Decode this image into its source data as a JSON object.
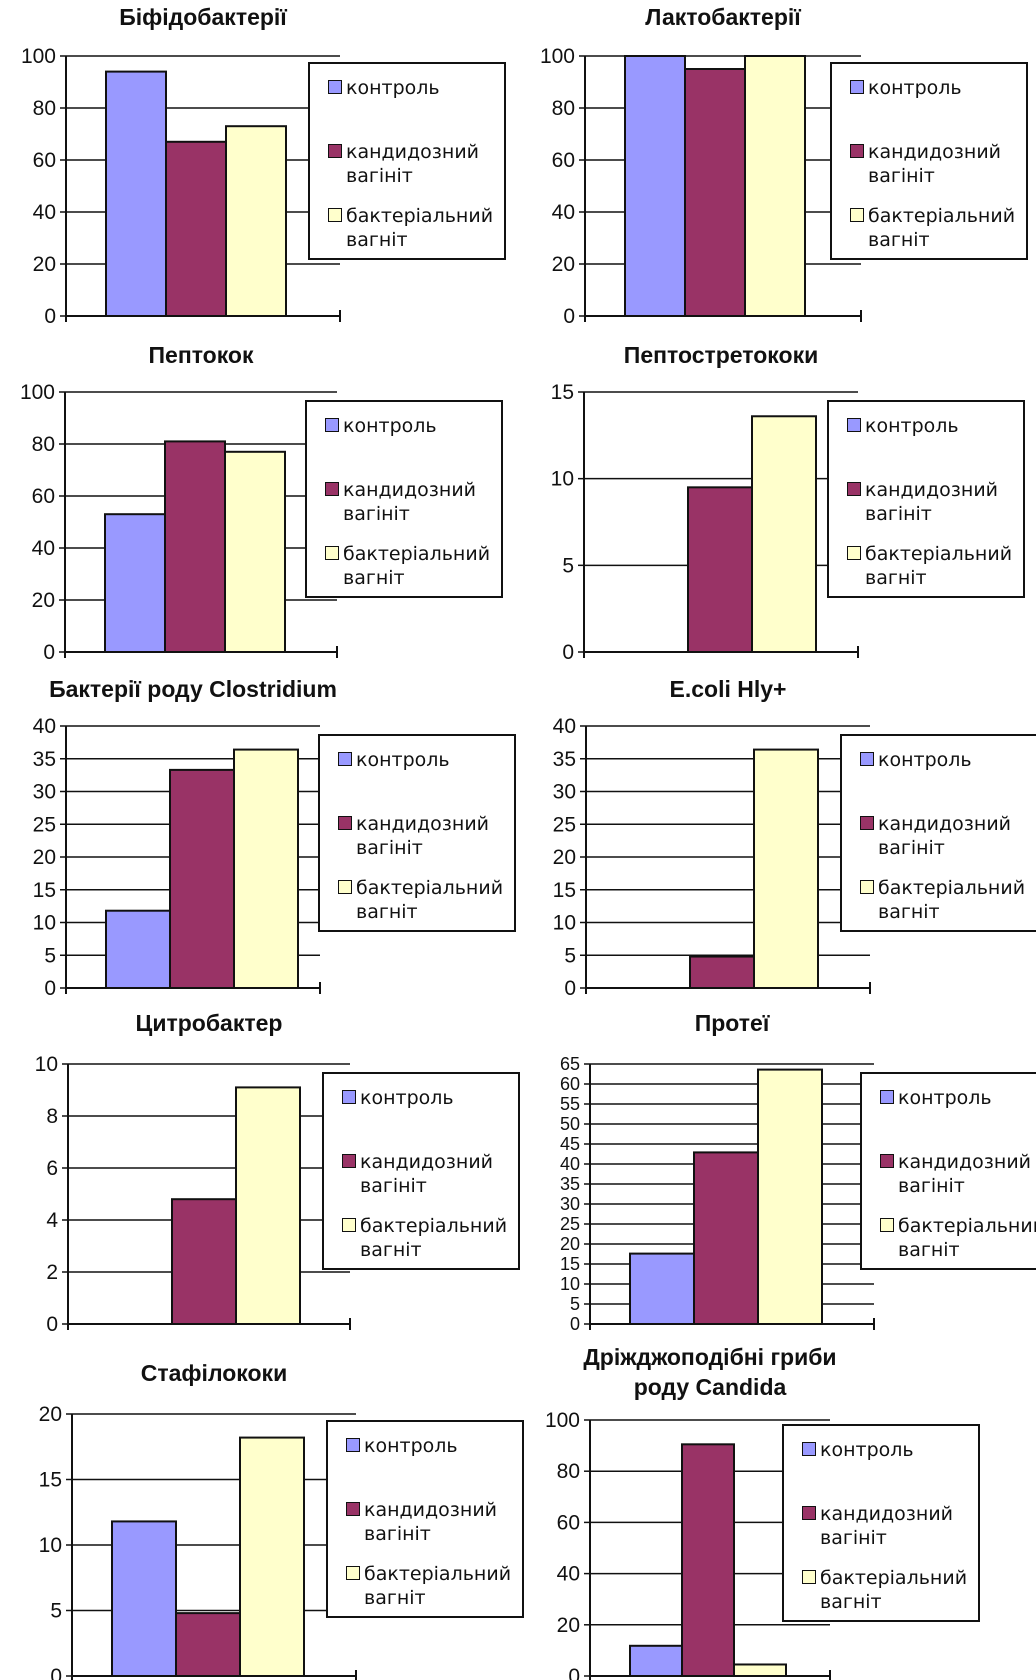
{
  "legend": [
    {
      "label": "контроль",
      "color": "#9999ff"
    },
    {
      "label": "кандидозний вагініт",
      "color": "#993366"
    },
    {
      "label": "бактеріальний вагніт",
      "color": "#ffffcc"
    }
  ],
  "chart_data": [
    {
      "type": "bar",
      "title": "Біфідобактерії",
      "categories": [
        "контроль",
        "кандидозний вагініт",
        "бактеріальний вагніт"
      ],
      "values": [
        94,
        67,
        73
      ],
      "ylim": [
        0,
        100
      ],
      "yticks": [
        0,
        20,
        40,
        60,
        80,
        100
      ],
      "grid": true,
      "legend_position": "right"
    },
    {
      "type": "bar",
      "title": "Лактобактерії",
      "categories": [
        "контроль",
        "кандидозний вагініт",
        "бактеріальний вагніт"
      ],
      "values": [
        100,
        95,
        100
      ],
      "ylim": [
        0,
        100
      ],
      "yticks": [
        0,
        20,
        40,
        60,
        80,
        100
      ],
      "grid": true,
      "legend_position": "right"
    },
    {
      "type": "bar",
      "title": "Пептокок",
      "categories": [
        "контроль",
        "кандидозний вагініт",
        "бактеріальний вагніт"
      ],
      "values": [
        53,
        81,
        77
      ],
      "ylim": [
        0,
        100
      ],
      "yticks": [
        0,
        20,
        40,
        60,
        80,
        100
      ],
      "grid": true,
      "legend_position": "right"
    },
    {
      "type": "bar",
      "title": "Пептостретококи",
      "categories": [
        "контроль",
        "кандидозний вагініт",
        "бактеріальний вагніт"
      ],
      "values": [
        0,
        9.5,
        13.6
      ],
      "ylim": [
        0,
        15
      ],
      "yticks": [
        0,
        5,
        10,
        15
      ],
      "grid": true,
      "legend_position": "right"
    },
    {
      "type": "bar",
      "title": "Бактерії роду Clostridium",
      "categories": [
        "контроль",
        "кандидозний вагініт",
        "бактеріальний вагніт"
      ],
      "values": [
        11.8,
        33.3,
        36.4
      ],
      "ylim": [
        0,
        40
      ],
      "yticks": [
        0,
        5,
        10,
        15,
        20,
        25,
        30,
        35,
        40
      ],
      "grid": true,
      "legend_position": "right"
    },
    {
      "type": "bar",
      "title": "E.coli Hly+",
      "categories": [
        "контроль",
        "кандидозний вагініт",
        "бактеріальний вагніт"
      ],
      "values": [
        0,
        4.8,
        36.4
      ],
      "ylim": [
        0,
        40
      ],
      "yticks": [
        0,
        5,
        10,
        15,
        20,
        25,
        30,
        35,
        40
      ],
      "grid": true,
      "legend_position": "right"
    },
    {
      "type": "bar",
      "title": "Цитробактер",
      "categories": [
        "контроль",
        "кандидозний вагініт",
        "бактеріальний вагніт"
      ],
      "values": [
        0,
        4.8,
        9.1
      ],
      "ylim": [
        0,
        10
      ],
      "yticks": [
        0,
        2,
        4,
        6,
        8,
        10
      ],
      "grid": true,
      "legend_position": "right"
    },
    {
      "type": "bar",
      "title": "Протеї",
      "categories": [
        "контроль",
        "кандидозний вагініт",
        "бактеріальний вагніт"
      ],
      "values": [
        17.6,
        42.9,
        63.6
      ],
      "ylim": [
        0,
        65
      ],
      "yticks": [
        0,
        5,
        10,
        15,
        20,
        25,
        30,
        35,
        40,
        45,
        50,
        55,
        60,
        65
      ],
      "grid": true,
      "legend_position": "right"
    },
    {
      "type": "bar",
      "title": "Стафілококи",
      "categories": [
        "контроль",
        "кандидозний вагініт",
        "бактеріальний вагніт"
      ],
      "values": [
        11.8,
        4.8,
        18.2
      ],
      "ylim": [
        0,
        20
      ],
      "yticks": [
        0,
        5,
        10,
        15,
        20
      ],
      "grid": true,
      "legend_position": "right"
    },
    {
      "type": "bar",
      "title": "Дріжджоподібні гриби роду Candida",
      "categories": [
        "контроль",
        "кандидозний вагініт",
        "бактеріальний вагніт"
      ],
      "values": [
        11.8,
        90.5,
        4.5
      ],
      "ylim": [
        0,
        100
      ],
      "yticks": [
        0,
        20,
        40,
        60,
        80,
        100
      ],
      "grid": true,
      "legend_position": "right"
    }
  ]
}
